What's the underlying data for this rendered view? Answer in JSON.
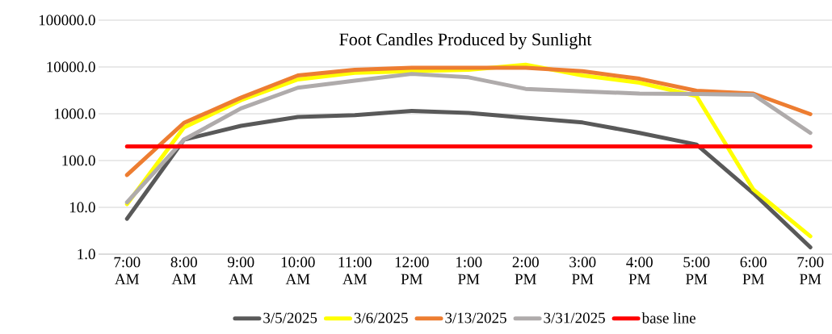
{
  "chart_data": {
    "type": "line",
    "title": "Foot Candles Produced by Sunlight",
    "categories": [
      "7:00 AM",
      "8:00 AM",
      "9:00 AM",
      "10:00 AM",
      "11:00 AM",
      "12:00 PM",
      "1:00 PM",
      "2:00 PM",
      "3:00 PM",
      "4:00 PM",
      "5:00 PM",
      "6:00 PM",
      "7:00 PM"
    ],
    "series": [
      {
        "name": "3/5/2025",
        "color": "#595959",
        "values": [
          5.7,
          280,
          550,
          850,
          930,
          1150,
          1040,
          820,
          650,
          390,
          220,
          20,
          1.4
        ]
      },
      {
        "name": "3/6/2025",
        "color": "#ffff00",
        "values": [
          11.7,
          510,
          1950,
          5400,
          7500,
          8100,
          8700,
          11200,
          6600,
          4600,
          2400,
          24,
          2.4
        ]
      },
      {
        "name": "3/13/2025",
        "color": "#ed7d31",
        "values": [
          49,
          640,
          2200,
          6600,
          8700,
          9600,
          9600,
          9600,
          8100,
          5600,
          3100,
          2700,
          980
        ]
      },
      {
        "name": "3/31/2025",
        "color": "#afabab",
        "values": [
          12.8,
          280,
          1300,
          3600,
          5100,
          7100,
          6000,
          3400,
          3000,
          2700,
          2650,
          2550,
          390
        ]
      },
      {
        "name": "base line",
        "color": "#ff0000",
        "values": [
          200,
          200,
          200,
          200,
          200,
          200,
          200,
          200,
          200,
          200,
          200,
          200,
          200
        ]
      }
    ],
    "log": "y",
    "ylim": [
      1,
      100000
    ],
    "yticks": [
      {
        "value": 1,
        "label": "1.0"
      },
      {
        "value": 10,
        "label": "10.0"
      },
      {
        "value": 100,
        "label": "100.0"
      },
      {
        "value": 1000,
        "label": "1000.0"
      },
      {
        "value": 10000,
        "label": "10000.0"
      },
      {
        "value": 100000,
        "label": "100000.0"
      }
    ],
    "grid": "y",
    "legend": "bottom"
  }
}
